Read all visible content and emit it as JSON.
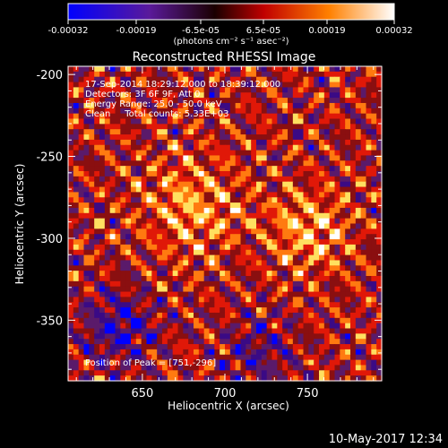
{
  "colorbar": {
    "tick_labels": [
      "-0.00032",
      "-0.00019",
      "-6.5e-05",
      "6.5e-05",
      "0.00019",
      "0.00032"
    ],
    "units": "(photons cm⁻² s⁻¹ asec⁻²)",
    "range": [
      -0.00032,
      0.00032
    ]
  },
  "chart_data": {
    "type": "heatmap",
    "title": "Reconstructed RHESSI Image",
    "xlabel": "Heliocentric X (arcsec)",
    "ylabel": "Heliocentric Y (arcsec)",
    "xlim": [
      605,
      795
    ],
    "ylim": [
      -387,
      -195
    ],
    "x_ticks": [
      650,
      700,
      750
    ],
    "y_ticks": [
      -200,
      -250,
      -300,
      -350
    ],
    "annotations": [
      "17-Sep-2014 18:29:12.000 to 18:39:12.000",
      "Detectors: 3F 6F 9F, Att 0",
      "Energy Range: 25.0 - 50.0 keV",
      "Clean     Total counts: 5.33E+03"
    ],
    "peak_label": "Position of Peak = [751,-296]",
    "peak": [
      751,
      -296
    ],
    "colors": [
      "#0000ff",
      "#3a0a85",
      "#5a1a6a",
      "#8a0f10",
      "#e01808",
      "#ff7a10",
      "#ffe060",
      "#ffffff"
    ]
  },
  "timestamp": "10-May-2017 12:34"
}
